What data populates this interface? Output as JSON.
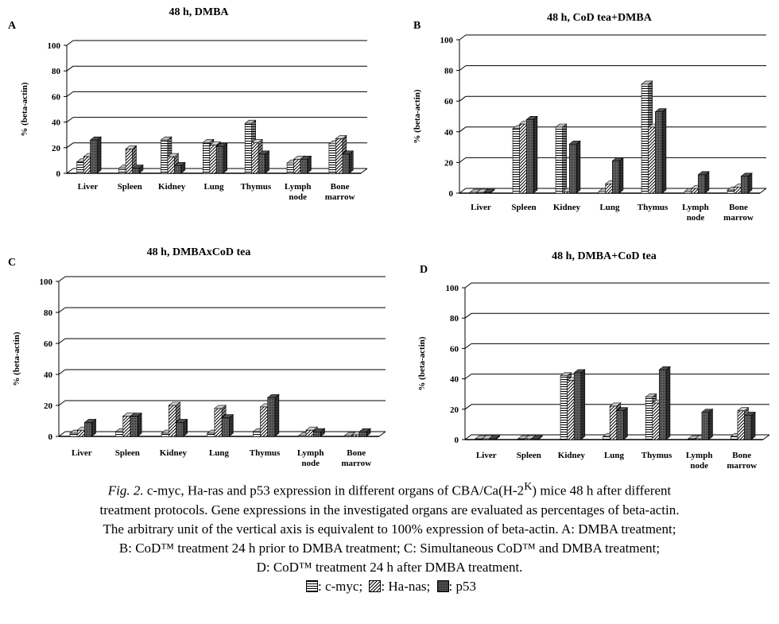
{
  "chart_data": [
    {
      "type": "bar",
      "panel": "A",
      "title": "48 h, DMBA",
      "ylabel": "% (beta-actin)",
      "ylim": [
        0,
        100
      ],
      "yticks": [
        "0",
        "20",
        "40",
        "60",
        "80",
        "100"
      ],
      "categories": [
        [
          "Liver"
        ],
        [
          "Spleen"
        ],
        [
          "Kidney"
        ],
        [
          "Lung"
        ],
        [
          "Thymus"
        ],
        [
          "Lymph",
          "node"
        ],
        [
          "Bone",
          "marrow"
        ]
      ],
      "series": [
        {
          "name": "c-myc",
          "values": [
            9,
            4,
            26,
            24,
            39,
            8,
            23
          ]
        },
        {
          "name": "Ha-nas",
          "values": [
            13,
            19,
            13,
            22,
            24,
            11,
            27
          ]
        },
        {
          "name": "p53",
          "values": [
            26,
            4,
            6,
            21,
            15,
            11,
            15
          ]
        }
      ]
    },
    {
      "type": "bar",
      "panel": "B",
      "title": "48 h, CoD tea+DMBA",
      "ylabel": "% (beta-actin)",
      "ylim": [
        0,
        100
      ],
      "yticks": [
        "0",
        "20",
        "40",
        "60",
        "80",
        "100"
      ],
      "categories": [
        [
          "Liver"
        ],
        [
          "Spleen"
        ],
        [
          "Kidney"
        ],
        [
          "Lung"
        ],
        [
          "Thymus"
        ],
        [
          "Lymph",
          "node"
        ],
        [
          "Bone",
          "marrow"
        ]
      ],
      "series": [
        {
          "name": "c-myc",
          "values": [
            0.5,
            42,
            43,
            1,
            71,
            1,
            2
          ]
        },
        {
          "name": "Ha-nas",
          "values": [
            0.5,
            45,
            1,
            6,
            43,
            3,
            4
          ]
        },
        {
          "name": "p53",
          "values": [
            0.5,
            48,
            32,
            21,
            53,
            12,
            11
          ]
        }
      ]
    },
    {
      "type": "bar",
      "panel": "C",
      "title": "48 h, DMBAxCoD tea",
      "ylabel": "% (beta-actin)",
      "ylim": [
        0,
        100
      ],
      "yticks": [
        "0",
        "20",
        "40",
        "60",
        "80",
        "100"
      ],
      "categories": [
        [
          "Liver"
        ],
        [
          "Spleen"
        ],
        [
          "Kidney"
        ],
        [
          "Lung"
        ],
        [
          "Thymus"
        ],
        [
          "Lymph",
          "node"
        ],
        [
          "Bone",
          "marrow"
        ]
      ],
      "series": [
        {
          "name": "c-myc",
          "values": [
            2,
            3,
            2,
            2,
            3,
            0.5,
            0.5
          ]
        },
        {
          "name": "Ha-nas",
          "values": [
            4,
            13,
            20,
            18,
            19,
            4,
            1
          ]
        },
        {
          "name": "p53",
          "values": [
            9,
            13,
            9,
            12,
            25,
            3,
            3
          ]
        }
      ]
    },
    {
      "type": "bar",
      "panel": "D",
      "title": "48 h, DMBA+CoD tea",
      "ylabel": "% (beta-actin)",
      "ylim": [
        0,
        100
      ],
      "yticks": [
        "0",
        "20",
        "40",
        "60",
        "80",
        "100"
      ],
      "categories": [
        [
          "Liver"
        ],
        [
          "Spleen"
        ],
        [
          "Kidney"
        ],
        [
          "Lung"
        ],
        [
          "Thymus"
        ],
        [
          "Lymph",
          "node"
        ],
        [
          "Bone",
          "marrow"
        ]
      ],
      "series": [
        {
          "name": "c-myc",
          "values": [
            0.5,
            0.5,
            42,
            2,
            28,
            0.5,
            2
          ]
        },
        {
          "name": "Ha-nas",
          "values": [
            0.5,
            0.5,
            39,
            22,
            24,
            0.5,
            19
          ]
        },
        {
          "name": "p53",
          "values": [
            0.5,
            0.5,
            44,
            19,
            46,
            18,
            16
          ]
        }
      ]
    }
  ],
  "caption": {
    "fig_label": "Fig. 2.",
    "line1_a": " c-myc, Ha-ras and p53 expression in different organs of CBA/Ca(H-2",
    "line1_sup": "K",
    "line1_b": ") mice 48 h after different",
    "line2": "treatment protocols. Gene expressions in the investigated organs are evaluated as percentages of beta-actin.",
    "line3": "The arbitrary unit of the vertical axis is equivalent to 100% expression of beta-actin. A: DMBA treatment;",
    "line4": "B: CoD™ treatment 24 h prior to DMBA treatment; C: Simultaneous CoD™ and DMBA treatment;",
    "line5": "D: CoD™ treatment 24 h after DMBA treatment.",
    "legend": [
      {
        "pattern": "horizontal",
        "label": ": c-myc;"
      },
      {
        "pattern": "diagonal",
        "label": ": Ha-nas;"
      },
      {
        "pattern": "crosshatch",
        "label": ": p53"
      }
    ]
  }
}
